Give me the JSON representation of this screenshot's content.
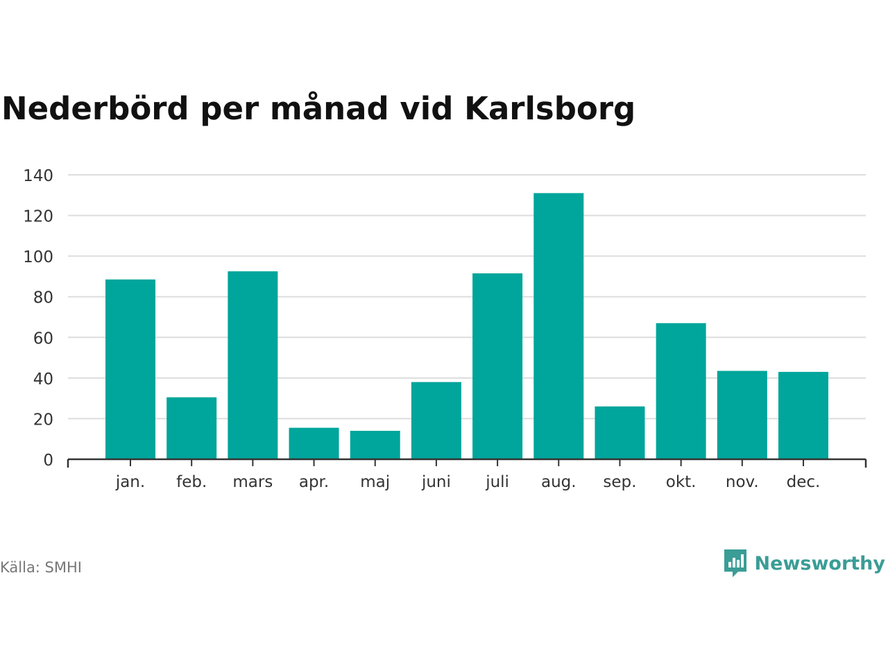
{
  "title": "Nederbörd per månad vid Karlsborg",
  "source": "Källa: SMHI",
  "brand": {
    "name": "Newsworthy",
    "icon": "newsworthy-logo-icon",
    "color": "#3a9d96"
  },
  "chart_data": {
    "type": "bar",
    "categories": [
      "jan.",
      "feb.",
      "mars",
      "apr.",
      "maj",
      "juni",
      "juli",
      "aug.",
      "sep.",
      "okt.",
      "nov.",
      "dec."
    ],
    "values": [
      88.5,
      30.5,
      92.5,
      15.5,
      14,
      38,
      91.5,
      131,
      26,
      67,
      43.5,
      43
    ],
    "ylim": [
      0,
      140
    ],
    "yticks": [
      0,
      20,
      40,
      60,
      80,
      100,
      120,
      140
    ],
    "xlabel": "",
    "ylabel": "",
    "grid": true,
    "bar_color": "#00a59b",
    "grid_color": "#dddddd",
    "axis_color": "#333333"
  }
}
